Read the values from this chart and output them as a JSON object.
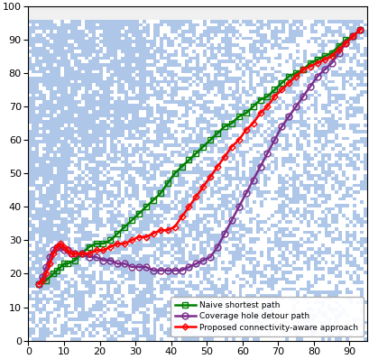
{
  "xlim": [
    0,
    95
  ],
  "ylim": [
    0,
    100
  ],
  "xticks": [
    0,
    10,
    20,
    30,
    40,
    50,
    60,
    70,
    80,
    90
  ],
  "yticks": [
    0,
    10,
    20,
    30,
    40,
    50,
    60,
    70,
    80,
    90,
    100
  ],
  "naive_path": {
    "x": [
      3,
      5,
      7,
      8,
      9,
      10,
      11,
      13,
      15,
      17,
      19,
      21,
      23,
      25,
      27,
      29,
      31,
      33,
      35,
      37,
      39,
      41,
      43,
      45,
      47,
      49,
      51,
      53,
      55,
      57,
      59,
      61,
      63,
      65,
      67,
      69,
      71,
      73,
      75,
      77,
      79,
      81,
      83,
      85,
      87,
      89,
      91,
      93
    ],
    "y": [
      17,
      18,
      20,
      21,
      22,
      23,
      23,
      24,
      26,
      28,
      29,
      29,
      30,
      32,
      34,
      36,
      38,
      40,
      42,
      44,
      47,
      50,
      52,
      54,
      56,
      58,
      60,
      62,
      64,
      65,
      67,
      68,
      70,
      72,
      73,
      75,
      77,
      79,
      80,
      81,
      83,
      84,
      85,
      86,
      88,
      90,
      91,
      93
    ],
    "color": "#008000",
    "marker": "s",
    "marker_size": 4,
    "linewidth": 1.8,
    "label": "Naive shortest path"
  },
  "detour_path": {
    "x": [
      3,
      4,
      5,
      6,
      7,
      8,
      9,
      10,
      11,
      12,
      13,
      15,
      17,
      19,
      21,
      23,
      25,
      27,
      29,
      31,
      33,
      35,
      37,
      39,
      41,
      43,
      45,
      47,
      49,
      51,
      53,
      55,
      57,
      59,
      61,
      63,
      65,
      67,
      69,
      71,
      73,
      75,
      77,
      79,
      81,
      83,
      85,
      87,
      89,
      91,
      93
    ],
    "y": [
      17,
      19,
      22,
      25,
      27,
      28,
      28,
      27,
      27,
      26,
      26,
      26,
      25,
      25,
      24,
      24,
      23,
      23,
      22,
      22,
      22,
      21,
      21,
      21,
      21,
      21,
      22,
      23,
      24,
      25,
      28,
      32,
      36,
      40,
      44,
      48,
      52,
      56,
      60,
      64,
      67,
      70,
      73,
      76,
      79,
      81,
      83,
      86,
      89,
      91,
      93
    ],
    "color": "#7B2D8B",
    "marker": "o",
    "marker_size": 5,
    "linewidth": 1.8,
    "label": "Coverage hole detour path"
  },
  "proposed_path": {
    "x": [
      3,
      4,
      5,
      6,
      7,
      8,
      9,
      10,
      11,
      12,
      13,
      15,
      17,
      19,
      21,
      23,
      25,
      27,
      29,
      31,
      33,
      35,
      37,
      39,
      41,
      43,
      45,
      47,
      49,
      51,
      53,
      55,
      57,
      59,
      61,
      63,
      65,
      67,
      69,
      71,
      73,
      75,
      77,
      79,
      81,
      83,
      85,
      87,
      89,
      91,
      93
    ],
    "y": [
      17,
      18,
      20,
      23,
      26,
      28,
      29,
      28,
      27,
      26,
      26,
      26,
      26,
      27,
      27,
      28,
      29,
      29,
      30,
      31,
      31,
      32,
      33,
      33,
      34,
      37,
      40,
      43,
      46,
      49,
      52,
      55,
      58,
      60,
      63,
      65,
      68,
      70,
      73,
      75,
      77,
      79,
      81,
      82,
      83,
      84,
      85,
      87,
      89,
      91,
      93
    ],
    "color": "#FF0000",
    "marker": "D",
    "marker_size": 3.5,
    "linewidth": 1.8,
    "label": "Proposed connectivity-aware approach"
  },
  "bg_blue": "#aec6e8",
  "bg_white": "#ffffff",
  "bg_gray": "#e8e8e8",
  "grid_seed": 12345,
  "grid_n": 96
}
